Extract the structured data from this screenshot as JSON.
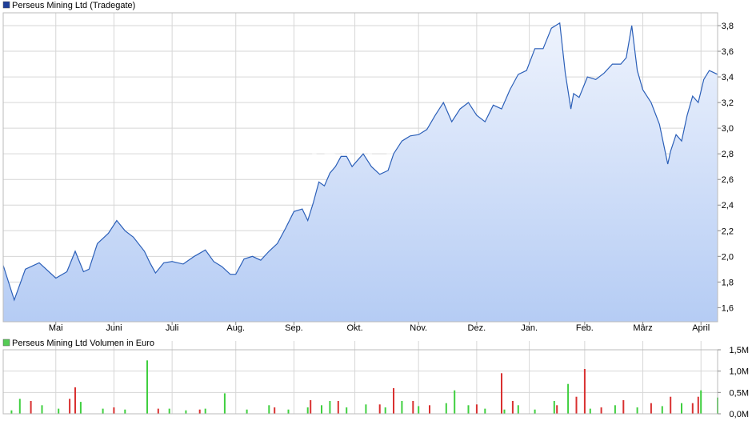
{
  "colors": {
    "price_line": "#2b5fb8",
    "area_top": "#eef3fd",
    "area_bottom": "#b5ccf4",
    "grid": "#d6d6d6",
    "vol_up": "#3fcf3f",
    "vol_down": "#d93030",
    "price_legend_box": "#1f3f99",
    "volume_legend_box": "#55cc55"
  },
  "watermark": "ARIVA.DE",
  "chart_data": [
    {
      "type": "area",
      "legend": "Perseus Mining Ltd (Tradegate)",
      "legend_position": "top-left",
      "grid": true,
      "y_axis_side": "right",
      "ylim": [
        1.49,
        3.9
      ],
      "yticks": [
        "1,6",
        "1,8",
        "2,0",
        "2,2",
        "2,4",
        "2,6",
        "2,8",
        "3,0",
        "3,2",
        "3,4",
        "3,6",
        "3,8"
      ],
      "ytick_values": [
        1.6,
        1.8,
        2.0,
        2.2,
        2.4,
        2.6,
        2.8,
        3.0,
        3.2,
        3.4,
        3.6,
        3.8
      ],
      "x_range": [
        0,
        258
      ],
      "month_labels": [
        "Mai",
        "Juni",
        "Juli",
        "Aug.",
        "Sep.",
        "Okt.",
        "Nov.",
        "Dez.",
        "Jan.",
        "Feb.",
        "März",
        "April"
      ],
      "month_positions": [
        19,
        40,
        61,
        84,
        105,
        127,
        150,
        171,
        190,
        210,
        231,
        252
      ],
      "series": [
        {
          "x": [
            0,
            4,
            8,
            13,
            19,
            23,
            26,
            29,
            31,
            34,
            38,
            41,
            44,
            47,
            51,
            53,
            55,
            58,
            61,
            65,
            69,
            73,
            76,
            79,
            82,
            84,
            87,
            90,
            93,
            96,
            99,
            102,
            105,
            108,
            110,
            112,
            114,
            116,
            118,
            120,
            122,
            124,
            126,
            128,
            130,
            133,
            136,
            139,
            141,
            144,
            147,
            150,
            153,
            156,
            159,
            162,
            165,
            168,
            171,
            174,
            177,
            180,
            183,
            186,
            189,
            192,
            195,
            198,
            201,
            203,
            205,
            206,
            208,
            211,
            214,
            217,
            220,
            223,
            225,
            227,
            229,
            231,
            234,
            237,
            240,
            241,
            243,
            245,
            247,
            249,
            251,
            253,
            255,
            258
          ],
          "y": [
            1.93,
            1.66,
            1.9,
            1.95,
            1.83,
            1.88,
            2.04,
            1.88,
            1.9,
            2.1,
            2.18,
            2.28,
            2.2,
            2.15,
            2.04,
            1.95,
            1.87,
            1.95,
            1.96,
            1.94,
            2.0,
            2.05,
            1.96,
            1.92,
            1.86,
            1.86,
            1.98,
            2.0,
            1.97,
            2.04,
            2.1,
            2.22,
            2.35,
            2.37,
            2.28,
            2.42,
            2.58,
            2.55,
            2.65,
            2.7,
            2.78,
            2.78,
            2.7,
            2.75,
            2.8,
            2.7,
            2.64,
            2.67,
            2.8,
            2.9,
            2.94,
            2.95,
            2.99,
            3.1,
            3.2,
            3.05,
            3.15,
            3.2,
            3.1,
            3.05,
            3.18,
            3.15,
            3.3,
            3.42,
            3.45,
            3.62,
            3.62,
            3.78,
            3.82,
            3.43,
            3.15,
            3.27,
            3.24,
            3.4,
            3.38,
            3.43,
            3.5,
            3.5,
            3.55,
            3.8,
            3.45,
            3.3,
            3.2,
            3.03,
            2.72,
            2.82,
            2.95,
            2.9,
            3.1,
            3.25,
            3.2,
            3.38,
            3.45,
            3.42
          ]
        }
      ]
    },
    {
      "type": "bar",
      "legend": "Perseus Mining Ltd Volumen in Euro",
      "legend_position": "top-left",
      "grid": true,
      "y_axis_side": "right",
      "ylim": [
        0,
        1.5
      ],
      "yticks": [
        "0,0M",
        "0,5M",
        "1,0M",
        "1,5M"
      ],
      "ytick_values": [
        0,
        0.5,
        1.0,
        1.5
      ],
      "x_range": [
        0,
        258
      ],
      "series": [
        {
          "name": "up",
          "x": [
            3,
            6,
            14,
            20,
            28,
            36,
            44,
            52,
            60,
            66,
            73,
            80,
            88,
            96,
            103,
            110,
            115,
            118,
            124,
            131,
            138,
            144,
            150,
            160,
            163,
            168,
            174,
            181,
            186,
            192,
            199,
            204,
            212,
            221,
            229,
            238,
            245,
            252,
            258
          ],
          "values": [
            0.08,
            0.35,
            0.2,
            0.12,
            0.28,
            0.12,
            0.1,
            1.25,
            0.12,
            0.08,
            0.12,
            0.48,
            0.1,
            0.2,
            0.1,
            0.15,
            0.2,
            0.3,
            0.15,
            0.22,
            0.15,
            0.3,
            0.18,
            0.25,
            0.55,
            0.2,
            0.12,
            0.1,
            0.2,
            0.1,
            0.3,
            0.7,
            0.12,
            0.2,
            0.15,
            0.18,
            0.25,
            0.55,
            0.38
          ]
        },
        {
          "name": "down",
          "x": [
            10,
            24,
            26,
            40,
            56,
            71,
            98,
            111,
            121,
            136,
            141,
            148,
            154,
            171,
            180,
            184,
            200,
            207,
            210,
            216,
            224,
            234,
            241,
            249,
            251
          ],
          "values": [
            0.3,
            0.35,
            0.62,
            0.15,
            0.12,
            0.1,
            0.15,
            0.32,
            0.3,
            0.22,
            0.6,
            0.3,
            0.2,
            0.22,
            0.95,
            0.3,
            0.2,
            0.4,
            1.05,
            0.15,
            0.32,
            0.25,
            0.4,
            0.25,
            0.4
          ]
        }
      ]
    }
  ]
}
